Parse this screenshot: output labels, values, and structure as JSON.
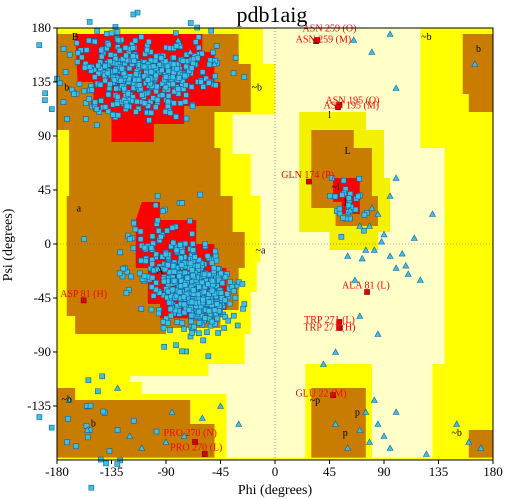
{
  "chart_data": {
    "type": "scatter",
    "title": "pdb1aig",
    "xlabel": "Phi (degrees)",
    "ylabel": "Psi (degrees)",
    "xlim": [
      -180,
      180
    ],
    "ylim": [
      -180,
      180
    ],
    "xticks": [
      "-180",
      "-135",
      "-90",
      "-45",
      "0",
      "45",
      "90",
      "135",
      "180"
    ],
    "yticks": [
      "180",
      "135",
      "90",
      "45",
      "0",
      "-45",
      "-90",
      "-135"
    ],
    "region_labels": [
      {
        "text": "B",
        "phi": -165,
        "psi": 170
      },
      {
        "text": "b",
        "phi": -172,
        "psi": 128
      },
      {
        "text": "A",
        "phi": -95,
        "psi": -25
      },
      {
        "text": "a",
        "phi": -162,
        "psi": 27
      },
      {
        "text": "~b",
        "phi": -15,
        "psi": 128
      },
      {
        "text": "~b",
        "phi": 125,
        "psi": 170
      },
      {
        "text": "b",
        "phi": 168,
        "psi": 160
      },
      {
        "text": "~b",
        "phi": -172,
        "psi": -132
      },
      {
        "text": "b",
        "phi": -150,
        "psi": -152
      },
      {
        "text": "~b",
        "phi": 150,
        "psi": -160
      },
      {
        "text": "~a",
        "phi": -12,
        "psi": -8
      },
      {
        "text": "l",
        "phi": 45,
        "psi": 105
      },
      {
        "text": "L",
        "phi": 60,
        "psi": 75
      },
      {
        "text": "~l",
        "phi": 50,
        "psi": 45
      },
      {
        "text": "l",
        "phi": 58,
        "psi": 32
      },
      {
        "text": "p",
        "phi": 68,
        "psi": -143
      },
      {
        "text": "~p",
        "phi": 33,
        "psi": -133
      },
      {
        "text": "p",
        "phi": 58,
        "psi": -160
      }
    ],
    "outlier_labels": [
      {
        "text": "ASN 259 (O)",
        "phi": 45,
        "psi": 177
      },
      {
        "text": "ASN 259 (M)",
        "phi": 40,
        "psi": 168
      },
      {
        "text": "ASN 195 (O)",
        "phi": 64,
        "psi": 117
      },
      {
        "text": "ASN 195 (M)",
        "phi": 63,
        "psi": 113
      },
      {
        "text": "GLN 174 (P)",
        "phi": 27,
        "psi": 55
      },
      {
        "text": "ASP 81 (H)",
        "phi": -158,
        "psi": -44
      },
      {
        "text": "ALA 81 (L)",
        "phi": 75,
        "psi": -37
      },
      {
        "text": "TRP 271 (L)",
        "phi": 45,
        "psi": -66
      },
      {
        "text": "TRP 271 (H)",
        "phi": 45,
        "psi": -72
      },
      {
        "text": "GLU 22 (M)",
        "phi": 38,
        "psi": -127
      },
      {
        "text": "PRO 270 (N)",
        "phi": -70,
        "psi": -160
      },
      {
        "text": "PRO 270 (L)",
        "phi": -65,
        "psi": -172
      }
    ],
    "outliers": [
      [
        34,
        169
      ],
      [
        35,
        170
      ],
      [
        53,
        116
      ],
      [
        52,
        114
      ],
      [
        28,
        52
      ],
      [
        -158,
        -47
      ],
      [
        76,
        -40
      ],
      [
        53,
        -65
      ],
      [
        53,
        -70
      ],
      [
        48,
        -126
      ],
      [
        -66,
        -165
      ],
      [
        -58,
        -175
      ]
    ],
    "residues_square": [],
    "residues_triangle": []
  }
}
